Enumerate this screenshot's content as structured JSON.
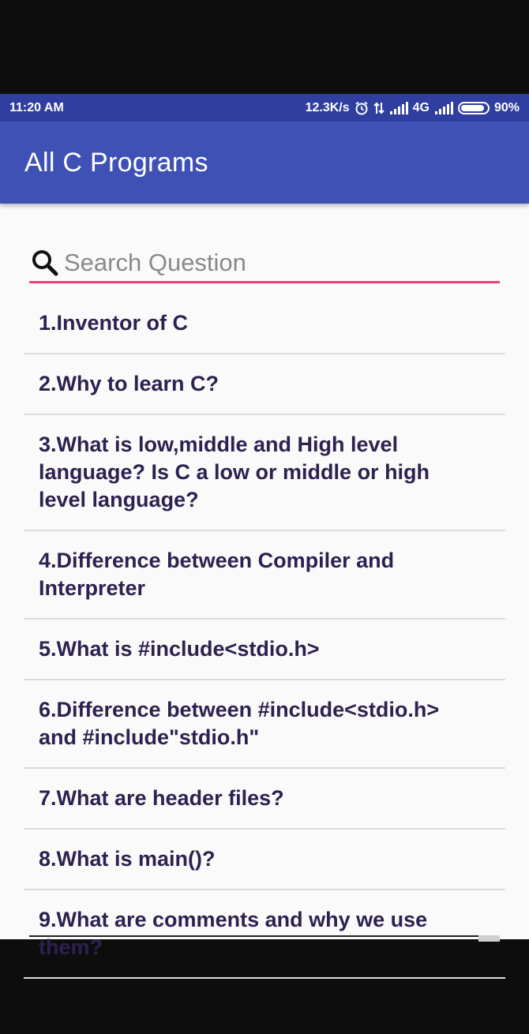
{
  "status_bar": {
    "time": "11:20 AM",
    "speed": "12.3K/s",
    "network": "4G",
    "battery_percent": "90%",
    "battery_level": 0.9
  },
  "app_bar": {
    "title": "All C Programs"
  },
  "search": {
    "placeholder": "Search Question",
    "value": ""
  },
  "colors": {
    "status_bar": "#303f9f",
    "app_bar": "#3f51b5",
    "accent_underline": "#e6447c",
    "item_text": "#2c2250"
  },
  "questions": [
    {
      "label": "1.Inventor of C"
    },
    {
      "label": "2.Why to learn C?"
    },
    {
      "label": "3.What is low,middle and High level language? Is C a low or middle or high level language?"
    },
    {
      "label": "4.Difference between Compiler and Interpreter"
    },
    {
      "label": "5.What is #include<stdio.h>"
    },
    {
      "label": "6.Difference between #include<stdio.h> and #include\"stdio.h\""
    },
    {
      "label": "7.What are header files?"
    },
    {
      "label": "8.What is main()?"
    },
    {
      "label": "9.What are comments and why we use them?"
    }
  ]
}
